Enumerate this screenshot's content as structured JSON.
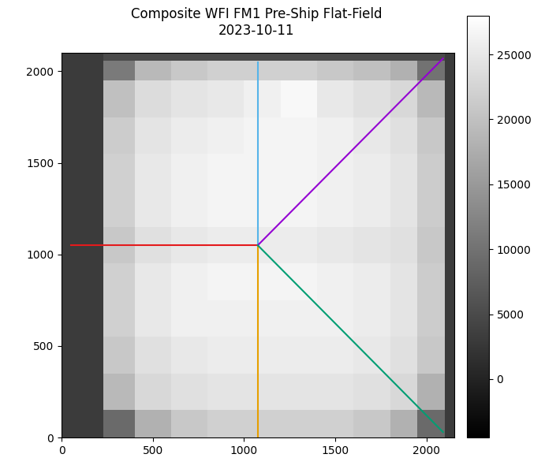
{
  "chart_data": {
    "type": "heatmap",
    "title": "Composite WFI FM1 Pre-Ship Flat-Field\n2023-10-11",
    "x_edges": [
      0,
      230,
      400,
      600,
      800,
      1000,
      1200,
      1400,
      1600,
      1800,
      1950,
      2100,
      2150
    ],
    "y_edges": [
      0,
      150,
      350,
      550,
      750,
      950,
      1150,
      1350,
      1550,
      1750,
      1950,
      2060,
      2100
    ],
    "cells": [
      [
        3000,
        9000,
        18000,
        21000,
        22000,
        22000,
        22000,
        22000,
        21000,
        18000,
        9000,
        3000
      ],
      [
        3000,
        19000,
        23000,
        24000,
        24500,
        24500,
        24500,
        24500,
        24000,
        23000,
        18000,
        3000
      ],
      [
        3000,
        21000,
        24000,
        25000,
        25500,
        25500,
        25500,
        25500,
        25000,
        24000,
        21000,
        3000
      ],
      [
        3000,
        22000,
        25000,
        26000,
        26000,
        26000,
        26000,
        26000,
        25500,
        24500,
        21500,
        3000
      ],
      [
        3000,
        22000,
        25000,
        26000,
        26500,
        26500,
        26500,
        26000,
        25500,
        24500,
        21500,
        3000
      ],
      [
        3000,
        21000,
        24000,
        25000,
        25500,
        25500,
        25500,
        25000,
        24500,
        24000,
        21000,
        3000
      ],
      [
        3000,
        22000,
        25000,
        26000,
        26500,
        26500,
        26500,
        26000,
        25500,
        24500,
        21500,
        3000
      ],
      [
        3000,
        22000,
        25000,
        26000,
        26500,
        26500,
        26500,
        26000,
        25500,
        24500,
        21500,
        3000
      ],
      [
        3000,
        21500,
        24500,
        25500,
        26000,
        26500,
        26500,
        26000,
        25000,
        24000,
        21000,
        3000
      ],
      [
        3000,
        20000,
        23500,
        24500,
        25000,
        26000,
        27000,
        25000,
        24000,
        23000,
        19000,
        3000
      ],
      [
        3000,
        11000,
        19000,
        21000,
        22000,
        22000,
        22000,
        21000,
        20000,
        18000,
        10000,
        3000
      ],
      [
        3000,
        5000,
        5000,
        5000,
        5000,
        5000,
        5000,
        5000,
        5000,
        5000,
        5000,
        3000
      ]
    ],
    "colorbar_range": [
      -4500,
      28000
    ],
    "colorbar_ticks": [
      0,
      5000,
      10000,
      15000,
      20000,
      25000
    ],
    "lines": [
      {
        "color": "#e41a1c",
        "x": [
          50,
          1075
        ],
        "y": [
          1050,
          1050
        ]
      },
      {
        "color": "#56b4e9",
        "x": [
          1075,
          1075
        ],
        "y": [
          1050,
          2050
        ]
      },
      {
        "color": "#e69f00",
        "x": [
          1075,
          1075
        ],
        "y": [
          1050,
          0
        ]
      },
      {
        "color": "#9400d3",
        "x": [
          1075,
          2090
        ],
        "y": [
          1050,
          2070
        ]
      },
      {
        "color": "#009e73",
        "x": [
          1075,
          2090
        ],
        "y": [
          1050,
          30
        ]
      }
    ],
    "xlim": [
      0,
      2150
    ],
    "ylim": [
      0,
      2100
    ],
    "xticks": [
      0,
      500,
      1000,
      1500,
      2000
    ],
    "yticks": [
      0,
      500,
      1000,
      1500,
      2000
    ]
  }
}
